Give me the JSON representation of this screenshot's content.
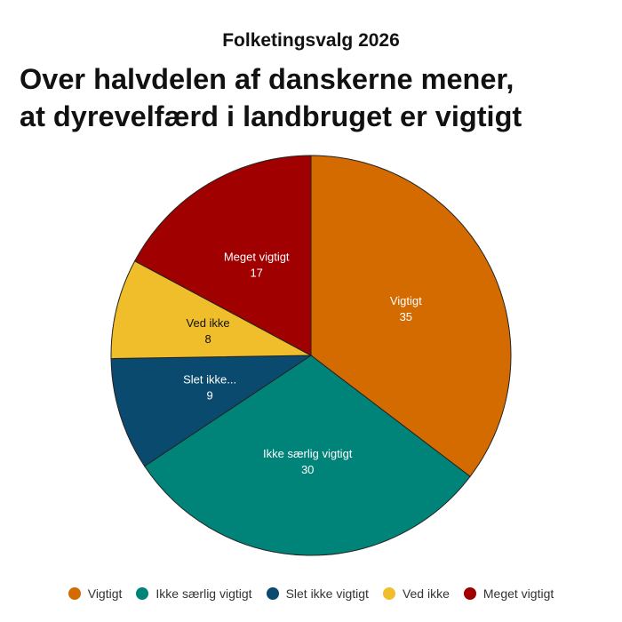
{
  "kicker": "Folketingsvalg 2026",
  "title_line1": "Over halvdelen af danskerne mener,",
  "title_line2": "at dyrevelfærd i landbruget er vigtigt",
  "chart_data": {
    "type": "pie",
    "categories": [
      "Vigtigt",
      "Ikke særlig vigtigt",
      "Slet ikke vigtigt",
      "Ved ikke",
      "Meget vigtigt"
    ],
    "slice_labels": [
      "Vigtigt",
      "Ikke særlig vigtigt",
      "Slet ikke...",
      "Ved ikke",
      "Meget vigtigt"
    ],
    "values": [
      35,
      30,
      9,
      8,
      17
    ],
    "colors": [
      "#d46b00",
      "#00847a",
      "#0b4a6f",
      "#f0bd2b",
      "#a00000"
    ],
    "label_colors": [
      "#ffffff",
      "#ffffff",
      "#ffffff",
      "#111111",
      "#ffffff"
    ],
    "legend_position": "bottom"
  }
}
